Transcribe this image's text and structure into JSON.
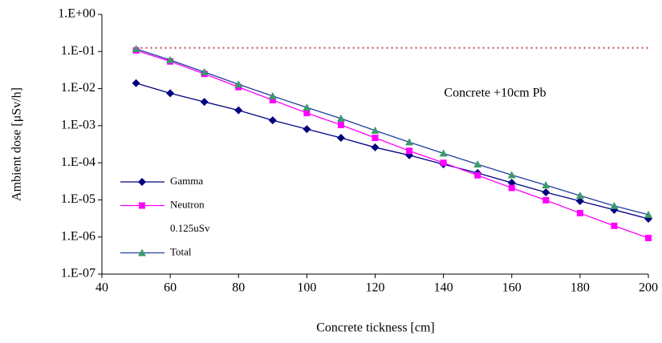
{
  "chart_data": {
    "type": "line",
    "xlabel": "Concrete tickness [cm]",
    "ylabel": "Ambient dose [μSv/h]",
    "annotation": "Concrete +10cm Pb",
    "log_y": true,
    "x": [
      50,
      60,
      70,
      80,
      90,
      100,
      110,
      120,
      130,
      140,
      150,
      160,
      170,
      180,
      190,
      200
    ],
    "series": [
      {
        "name": "Gamma",
        "color": "#000080",
        "marker": "diamond",
        "marker_color": "#000080",
        "values": [
          0.014,
          0.0075,
          0.0044,
          0.0026,
          0.0014,
          0.00081,
          0.00047,
          0.00026,
          0.00016,
          9.1e-05,
          5.3e-05,
          2.9e-05,
          1.6e-05,
          9.3e-06,
          5.4e-06,
          3.1e-06
        ]
      },
      {
        "name": "Neutron",
        "color": "#ff00ff",
        "marker": "square",
        "marker_color": "#ff00ff",
        "values": [
          0.107,
          0.054,
          0.025,
          0.011,
          0.0049,
          0.0022,
          0.00105,
          0.00047,
          0.00021,
          0.0001,
          4.6e-05,
          2.1e-05,
          9.8e-06,
          4.4e-06,
          2e-06,
          9.4e-07
        ]
      },
      {
        "name": "0.125uSv",
        "color": "#c0504d",
        "style": "dotted",
        "values": [
          0.125,
          0.125,
          0.125,
          0.125,
          0.125,
          0.125,
          0.125,
          0.125,
          0.125,
          0.125,
          0.125,
          0.125,
          0.125,
          0.125,
          0.125,
          0.125
        ]
      },
      {
        "name": "Total",
        "color": "#1f3f9f",
        "marker": "triangle",
        "marker_color": "#3c9a6a",
        "values": [
          0.118,
          0.059,
          0.028,
          0.013,
          0.0063,
          0.0031,
          0.00156,
          0.00074,
          0.00036,
          0.00018,
          9.1e-05,
          4.7e-05,
          2.5e-05,
          1.3e-05,
          6.9e-06,
          4e-06
        ]
      }
    ],
    "xlim": [
      40,
      200
    ],
    "xticks": [
      40,
      60,
      80,
      100,
      120,
      140,
      160,
      180,
      200
    ],
    "ylim": [
      1e-07,
      1
    ],
    "yticks": [
      {
        "value": 1,
        "label": "1.E+00"
      },
      {
        "value": 0.1,
        "label": "1.E-01"
      },
      {
        "value": 0.01,
        "label": "1.E-02"
      },
      {
        "value": 0.001,
        "label": "1.E-03"
      },
      {
        "value": 0.0001,
        "label": "1.E-04"
      },
      {
        "value": 1e-05,
        "label": "1.E-05"
      },
      {
        "value": 1e-06,
        "label": "1.E-06"
      },
      {
        "value": 1e-07,
        "label": "1.E-07"
      }
    ],
    "legend": "lower left"
  }
}
